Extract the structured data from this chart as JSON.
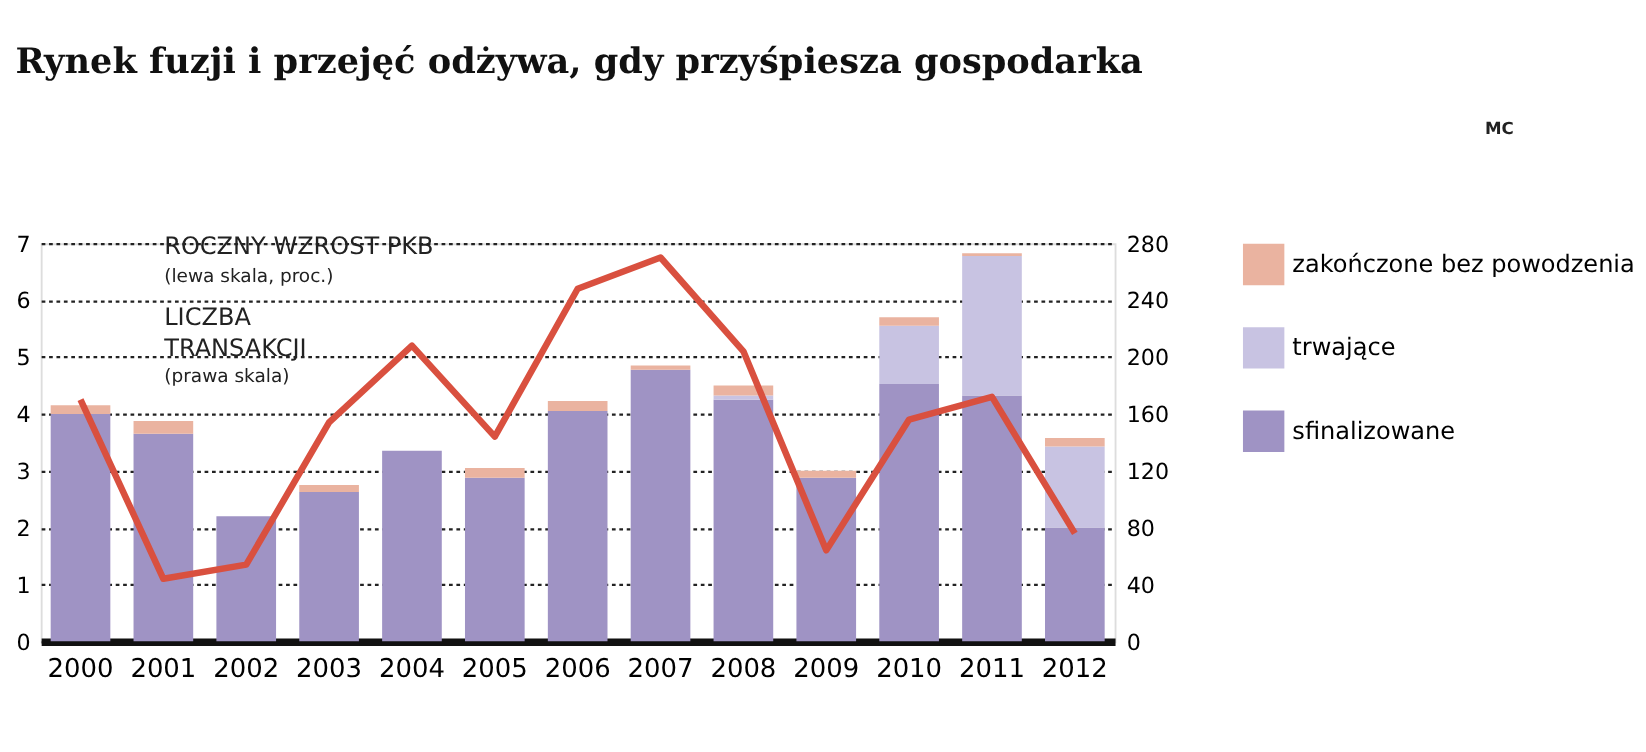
{
  "chart_data": {
    "type": "bar",
    "title": "Rynek fuzji i przejęć odżywa, gdy przyśpiesza gospodarka",
    "categories": [
      "2000",
      "2001",
      "2002",
      "2003",
      "2004",
      "2005",
      "2006",
      "2007",
      "2008",
      "2009",
      "2010",
      "2011",
      "2012"
    ],
    "stacked": true,
    "series": [
      {
        "name": "sfinalizowane",
        "color": "#9f93c4",
        "axis": "y2",
        "values": [
          160,
          146,
          88,
          105,
          134,
          115,
          162,
          191,
          170,
          115,
          181,
          173,
          80
        ]
      },
      {
        "name": "trwające",
        "color": "#c8c3e2",
        "axis": "y2",
        "values": [
          null,
          null,
          null,
          null,
          null,
          null,
          null,
          null,
          3,
          null,
          41,
          98,
          57
        ]
      },
      {
        "name": "zakończone bez powodzenia",
        "color": "#eab3a0",
        "axis": "y2",
        "values": [
          6,
          9,
          null,
          5,
          null,
          7,
          7,
          3,
          7,
          5,
          6,
          2,
          6
        ]
      },
      {
        "type": "line",
        "color": "#d9503f",
        "axis": "y",
        "values": [
          4.25,
          1.1,
          1.35,
          3.85,
          5.2,
          3.6,
          6.2,
          6.75,
          5.1,
          1.6,
          3.9,
          4.3,
          1.9
        ]
      }
    ],
    "ylim": [
      0,
      7
    ],
    "yticks": [
      0,
      1,
      2,
      3,
      4,
      5,
      6,
      7
    ],
    "y2lim": [
      0,
      280
    ],
    "y2ticks": [
      0,
      40,
      80,
      120,
      160,
      200,
      240,
      280
    ],
    "grid": "y",
    "legend": "right",
    "annotations": [
      "ROCZNY WZROST PKB",
      "(lewa skala, proc.)",
      "LICZBA TRANSAKCJI",
      "(prawa skala)",
      "MC"
    ]
  }
}
